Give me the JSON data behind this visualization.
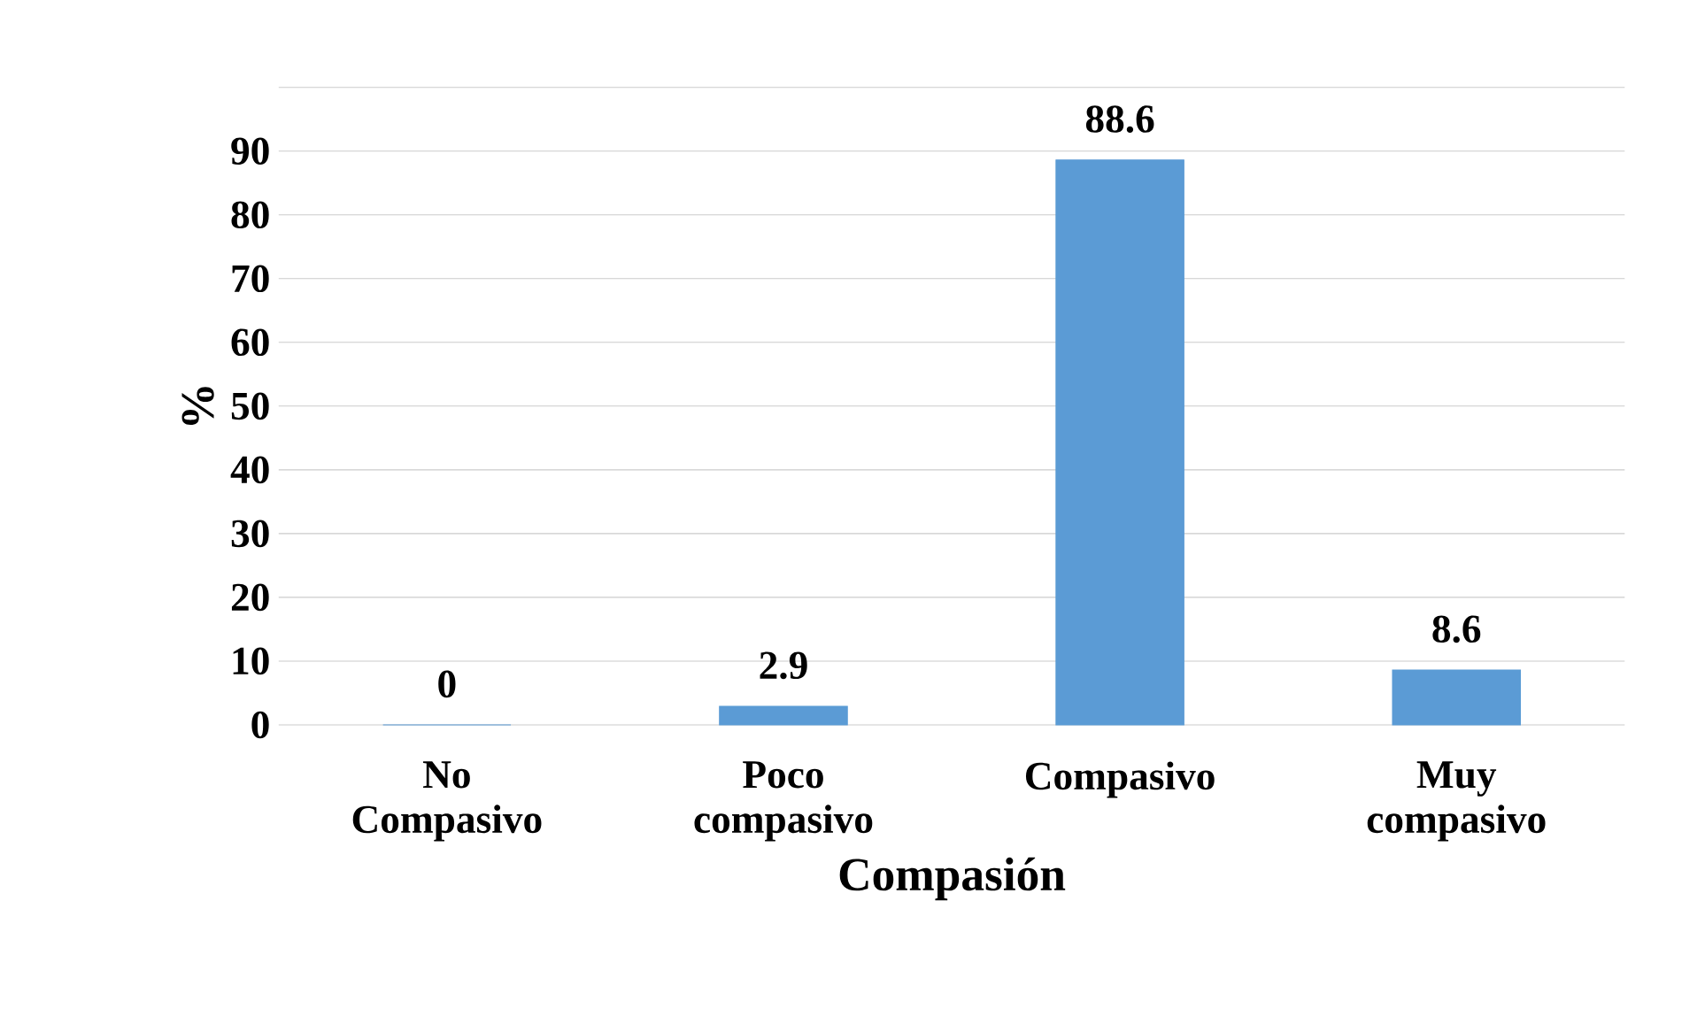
{
  "chart_data": {
    "type": "bar",
    "xlabel": "Compasión",
    "ylabel": "%",
    "categories": [
      "No Compasivo",
      "Poco compasivo",
      "Compasivo",
      "Muy compasivo"
    ],
    "values": [
      0,
      2.9,
      88.6,
      8.6
    ],
    "color": "#5b9bd5",
    "ylim": [
      0,
      100
    ],
    "yticks": [
      0,
      10,
      20,
      30,
      40,
      50,
      60,
      70,
      80,
      90,
      {
        "value": 100,
        "label": null
      }
    ],
    "grid": "y",
    "data_labels": true
  }
}
